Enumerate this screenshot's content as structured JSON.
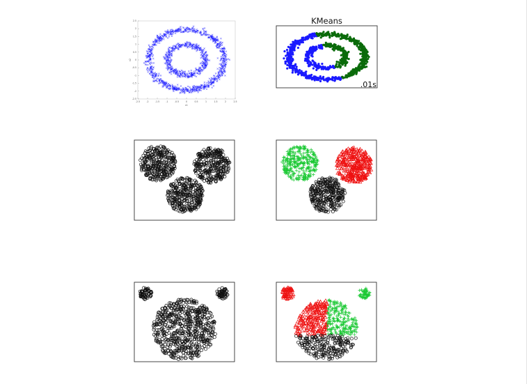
{
  "colors": {
    "blue": "#1a1aff",
    "green": "#0a6b0a",
    "light_green": "#19c832",
    "red": "#ee1111",
    "black": "#111111",
    "ring_blue": "#3a3ae6"
  },
  "chart_data": [
    {
      "panel": "rings-input",
      "type": "scatter",
      "title": "",
      "xlabel": "x1",
      "ylabel": "x2",
      "xlim": [
        -2.5,
        2.5
      ],
      "ylim": [
        -2.5,
        2.5
      ],
      "xticks": [
        "-2.5",
        "-2",
        "-1.5",
        "-1",
        "-0.5",
        "0",
        "0.5",
        "1",
        "1.5",
        "2",
        "2.5"
      ],
      "yticks": [
        "2.5",
        "2",
        "1.5",
        "1",
        "0.5",
        "0",
        "-0.5",
        "-1",
        "-1.5",
        "-2",
        "-2.5"
      ],
      "marker": "x",
      "series": [
        {
          "color": "blue",
          "shape": "ring",
          "center": [
            0,
            0
          ],
          "radius": 2.0,
          "noise": 0.1,
          "count": 900
        },
        {
          "color": "blue",
          "shape": "ring",
          "center": [
            0,
            0
          ],
          "radius": 1.0,
          "noise": 0.1,
          "count": 500
        }
      ]
    },
    {
      "panel": "rings-kmeans",
      "type": "scatter",
      "title": "KMeans",
      "annotation": ".01s",
      "xlim": [
        -2.5,
        2.5
      ],
      "ylim": [
        -2.5,
        2.5
      ],
      "marker": "dot",
      "series": [
        {
          "color": "blue",
          "cluster": "left",
          "shape": "ring",
          "center": [
            0,
            0
          ],
          "radius": 2.0,
          "noise": 0.1,
          "count": 700
        },
        {
          "color": "blue",
          "cluster": "left",
          "shape": "ring",
          "center": [
            0,
            0
          ],
          "radius": 1.0,
          "noise": 0.1,
          "count": 380
        },
        {
          "color": "green",
          "cluster": "right",
          "shape": "ring",
          "center": [
            0,
            0
          ],
          "radius": 2.0,
          "noise": 0.1,
          "count": 700
        },
        {
          "color": "green",
          "cluster": "right",
          "shape": "ring",
          "center": [
            0,
            0
          ],
          "radius": 1.0,
          "noise": 0.1,
          "count": 380
        }
      ]
    },
    {
      "panel": "three-blobs-input",
      "type": "scatter",
      "xlim": [
        0,
        10
      ],
      "ylim": [
        0,
        8
      ],
      "marker": "o",
      "series": [
        {
          "color": "black",
          "shape": "disk",
          "center": [
            2.2,
            5.8
          ],
          "radius": 1.9,
          "count": 320
        },
        {
          "color": "black",
          "shape": "disk",
          "center": [
            7.9,
            5.6
          ],
          "radius": 1.9,
          "count": 320
        },
        {
          "color": "black",
          "shape": "disk",
          "center": [
            5.1,
            2.4
          ],
          "radius": 1.9,
          "count": 320
        }
      ]
    },
    {
      "panel": "three-blobs-clustered",
      "type": "scatter",
      "xlim": [
        0,
        10
      ],
      "ylim": [
        0,
        8
      ],
      "series": [
        {
          "color": "light_green",
          "marker": "+",
          "shape": "disk",
          "center": [
            2.2,
            5.8
          ],
          "radius": 1.9,
          "count": 320
        },
        {
          "color": "red",
          "marker": "^",
          "shape": "disk",
          "center": [
            7.9,
            5.6
          ],
          "radius": 1.9,
          "count": 320
        },
        {
          "color": "black",
          "marker": "o",
          "shape": "disk",
          "center": [
            5.1,
            2.4
          ],
          "radius": 1.9,
          "count": 320
        }
      ]
    },
    {
      "panel": "mixed-blobs-input",
      "type": "scatter",
      "xlim": [
        0,
        10
      ],
      "ylim": [
        0,
        8
      ],
      "marker": "o",
      "series": [
        {
          "color": "black",
          "shape": "disk",
          "center": [
            0.9,
            7.1
          ],
          "radius": 0.65,
          "count": 60
        },
        {
          "color": "black",
          "shape": "disk",
          "center": [
            9.0,
            7.1
          ],
          "radius": 0.6,
          "count": 55
        },
        {
          "color": "black",
          "shape": "disk",
          "center": [
            5.0,
            3.2
          ],
          "radius": 3.3,
          "count": 650
        }
      ]
    },
    {
      "panel": "mixed-blobs-clustered",
      "type": "scatter",
      "xlim": [
        0,
        10
      ],
      "ylim": [
        0,
        8
      ],
      "series": [
        {
          "color": "red",
          "marker": "^",
          "shape": "disk",
          "center": [
            0.9,
            7.1
          ],
          "radius": 0.65,
          "count": 60
        },
        {
          "color": "light_green",
          "marker": "+",
          "shape": "disk",
          "center": [
            9.0,
            7.1
          ],
          "radius": 0.6,
          "count": 55
        },
        {
          "color": "red",
          "marker": "^",
          "shape": "disk",
          "center": [
            5.0,
            3.2
          ],
          "radius": 3.3,
          "count": 650,
          "sector": "upper-left"
        },
        {
          "color": "light_green",
          "marker": "+",
          "shape": "disk",
          "center": [
            5.0,
            3.2
          ],
          "radius": 3.3,
          "count": 650,
          "sector": "upper-right"
        },
        {
          "color": "black",
          "marker": "o",
          "shape": "disk",
          "center": [
            5.0,
            3.2
          ],
          "radius": 3.3,
          "count": 650,
          "sector": "lower"
        }
      ]
    }
  ]
}
